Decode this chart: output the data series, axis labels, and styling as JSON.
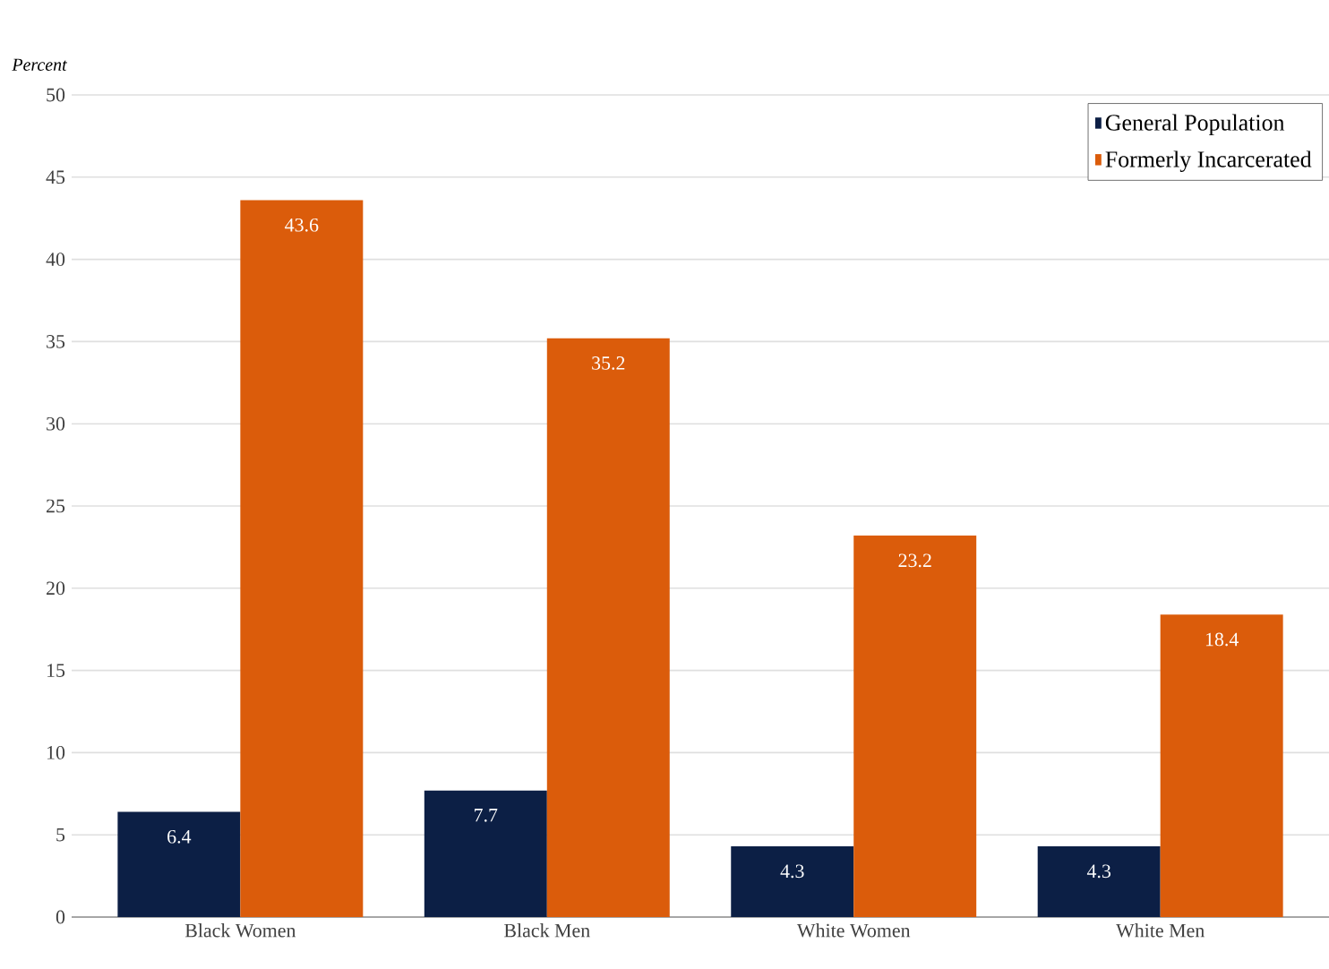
{
  "chart_data": {
    "type": "bar",
    "ylabel": "Percent",
    "categories": [
      "Black Women",
      "Black Men",
      "White Women",
      "White Men"
    ],
    "series": [
      {
        "name": "General Population",
        "color": "#0c1f45",
        "values": [
          6.4,
          7.7,
          4.3,
          4.3
        ]
      },
      {
        "name": "Formerly Incarcerated",
        "color": "#db5c0b",
        "values": [
          43.6,
          35.2,
          23.2,
          18.4
        ]
      }
    ],
    "ylim": [
      0,
      50
    ],
    "yticks": [
      0,
      5,
      10,
      15,
      20,
      25,
      30,
      35,
      40,
      45,
      50
    ],
    "grid": "y",
    "legend": "top right",
    "data_labels": true
  }
}
